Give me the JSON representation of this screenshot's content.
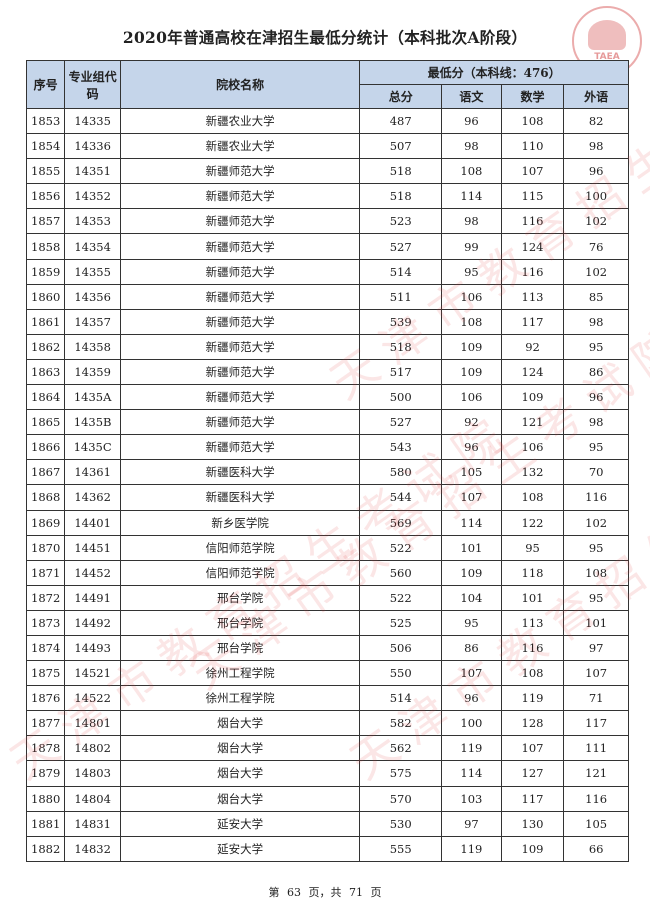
{
  "title": "2020年普通高校在津招生最低分统计（本科批次A阶段）",
  "logo_text": "TAEA",
  "watermark": "天津市教育招生考试院",
  "header": {
    "seq": "序号",
    "code": "专业组代码",
    "school": "院校名称",
    "min_score": "最低分（本科线：476）",
    "total": "总分",
    "chinese": "语文",
    "math": "数学",
    "foreign": "外语"
  },
  "rows": [
    [
      "1853",
      "14335",
      "新疆农业大学",
      "487",
      "96",
      "108",
      "82"
    ],
    [
      "1854",
      "14336",
      "新疆农业大学",
      "507",
      "98",
      "110",
      "98"
    ],
    [
      "1855",
      "14351",
      "新疆师范大学",
      "518",
      "108",
      "107",
      "96"
    ],
    [
      "1856",
      "14352",
      "新疆师范大学",
      "518",
      "114",
      "115",
      "100"
    ],
    [
      "1857",
      "14353",
      "新疆师范大学",
      "523",
      "98",
      "116",
      "102"
    ],
    [
      "1858",
      "14354",
      "新疆师范大学",
      "527",
      "99",
      "124",
      "76"
    ],
    [
      "1859",
      "14355",
      "新疆师范大学",
      "514",
      "95",
      "116",
      "102"
    ],
    [
      "1860",
      "14356",
      "新疆师范大学",
      "511",
      "106",
      "113",
      "85"
    ],
    [
      "1861",
      "14357",
      "新疆师范大学",
      "539",
      "108",
      "117",
      "98"
    ],
    [
      "1862",
      "14358",
      "新疆师范大学",
      "518",
      "109",
      "92",
      "95"
    ],
    [
      "1863",
      "14359",
      "新疆师范大学",
      "517",
      "109",
      "124",
      "86"
    ],
    [
      "1864",
      "1435A",
      "新疆师范大学",
      "500",
      "106",
      "109",
      "96"
    ],
    [
      "1865",
      "1435B",
      "新疆师范大学",
      "527",
      "92",
      "121",
      "98"
    ],
    [
      "1866",
      "1435C",
      "新疆师范大学",
      "543",
      "96",
      "106",
      "95"
    ],
    [
      "1867",
      "14361",
      "新疆医科大学",
      "580",
      "105",
      "132",
      "70"
    ],
    [
      "1868",
      "14362",
      "新疆医科大学",
      "544",
      "107",
      "108",
      "116"
    ],
    [
      "1869",
      "14401",
      "新乡医学院",
      "569",
      "114",
      "122",
      "102"
    ],
    [
      "1870",
      "14451",
      "信阳师范学院",
      "522",
      "101",
      "95",
      "95"
    ],
    [
      "1871",
      "14452",
      "信阳师范学院",
      "560",
      "109",
      "118",
      "108"
    ],
    [
      "1872",
      "14491",
      "邢台学院",
      "522",
      "104",
      "101",
      "95"
    ],
    [
      "1873",
      "14492",
      "邢台学院",
      "525",
      "95",
      "113",
      "101"
    ],
    [
      "1874",
      "14493",
      "邢台学院",
      "506",
      "86",
      "116",
      "97"
    ],
    [
      "1875",
      "14521",
      "徐州工程学院",
      "550",
      "107",
      "108",
      "107"
    ],
    [
      "1876",
      "14522",
      "徐州工程学院",
      "514",
      "96",
      "119",
      "71"
    ],
    [
      "1877",
      "14801",
      "烟台大学",
      "582",
      "100",
      "128",
      "117"
    ],
    [
      "1878",
      "14802",
      "烟台大学",
      "562",
      "119",
      "107",
      "111"
    ],
    [
      "1879",
      "14803",
      "烟台大学",
      "575",
      "114",
      "127",
      "121"
    ],
    [
      "1880",
      "14804",
      "烟台大学",
      "570",
      "103",
      "117",
      "116"
    ],
    [
      "1881",
      "14831",
      "延安大学",
      "530",
      "97",
      "130",
      "105"
    ],
    [
      "1882",
      "14832",
      "延安大学",
      "555",
      "119",
      "109",
      "66"
    ]
  ],
  "footer": "第 63 页，共 71 页",
  "colors": {
    "header_bg": "#c5d5ea",
    "watermark": "#e13c3c"
  }
}
